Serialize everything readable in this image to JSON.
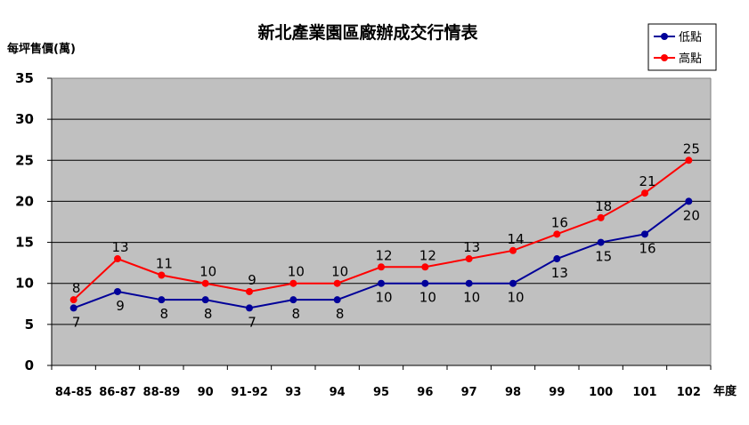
{
  "chart_data": {
    "type": "line",
    "title": "新北產業園區廠辦成交行情表",
    "ylabel": "每坪售價(萬)",
    "xlabel": "年度",
    "categories": [
      "84-85",
      "86-87",
      "88-89",
      "90",
      "91-92",
      "93",
      "94",
      "95",
      "96",
      "97",
      "98",
      "99",
      "100",
      "101",
      "102"
    ],
    "ylim": [
      0,
      35
    ],
    "yticks": [
      0,
      5,
      10,
      15,
      20,
      25,
      30,
      35
    ],
    "grid": true,
    "legend": "top-right",
    "series": [
      {
        "name": "低點",
        "color": "#000099",
        "values": [
          7,
          9,
          8,
          8,
          7,
          8,
          8,
          10,
          10,
          10,
          10,
          13,
          15,
          16,
          20
        ]
      },
      {
        "name": "高點",
        "color": "#ff0000",
        "values": [
          8,
          13,
          11,
          10,
          9,
          10,
          10,
          12,
          12,
          13,
          14,
          16,
          18,
          21,
          25
        ]
      }
    ],
    "plot_background": "#c0c0c0"
  }
}
